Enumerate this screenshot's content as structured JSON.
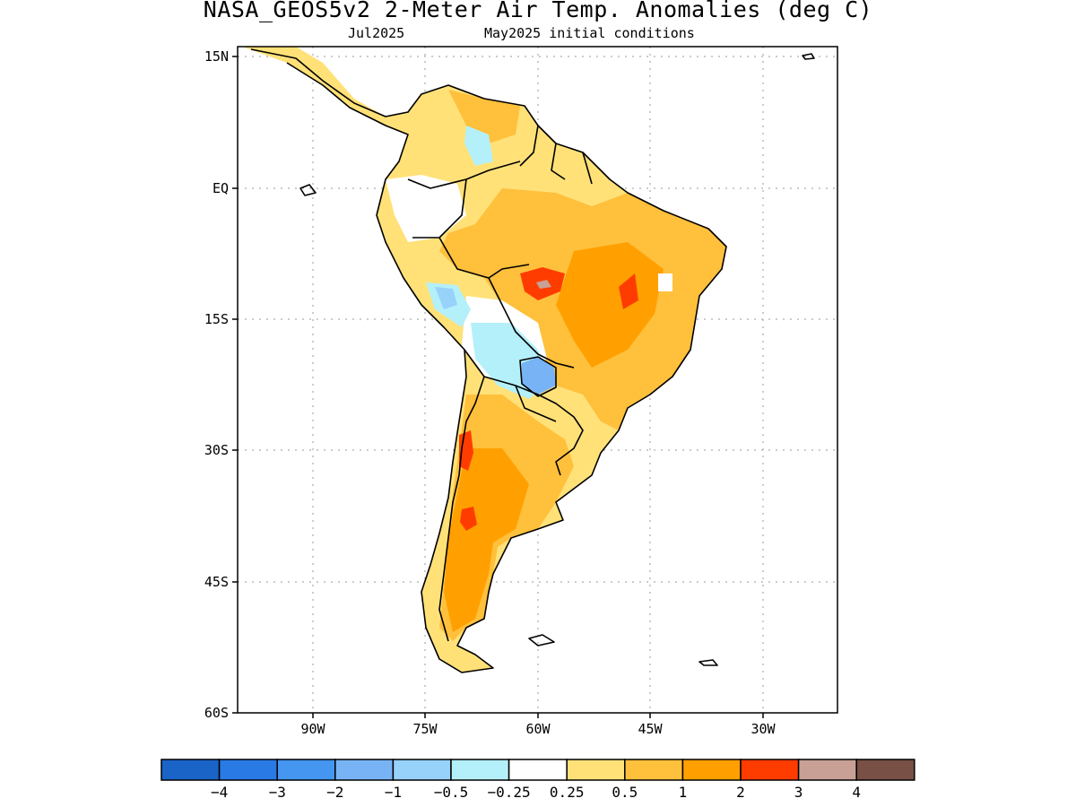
{
  "title": "NASA_GEOS5v2 2-Meter Air Temp. Anomalies (deg C)",
  "subtitle_left": "Jul2025",
  "subtitle_right": "May2025 initial conditions",
  "map": {
    "lat_labels": [
      "15N",
      "EQ",
      "15S",
      "30S",
      "45S",
      "60S"
    ],
    "lon_labels": [
      "90W",
      "75W",
      "60W",
      "45W",
      "30W"
    ]
  },
  "colorbar": {
    "colors": [
      "#1a64c8",
      "#2a7ae6",
      "#4496f0",
      "#78b4f5",
      "#96d2fa",
      "#b4f0fa",
      "#ffffff",
      "#ffe178",
      "#ffc03c",
      "#ffa000",
      "#ff3c00",
      "#c8a096",
      "#785046"
    ],
    "labels": [
      "−4",
      "−3",
      "−2",
      "−1",
      "−0.5",
      "−0.25",
      "0.25",
      "0.5",
      "1",
      "2",
      "3",
      "4"
    ]
  }
}
